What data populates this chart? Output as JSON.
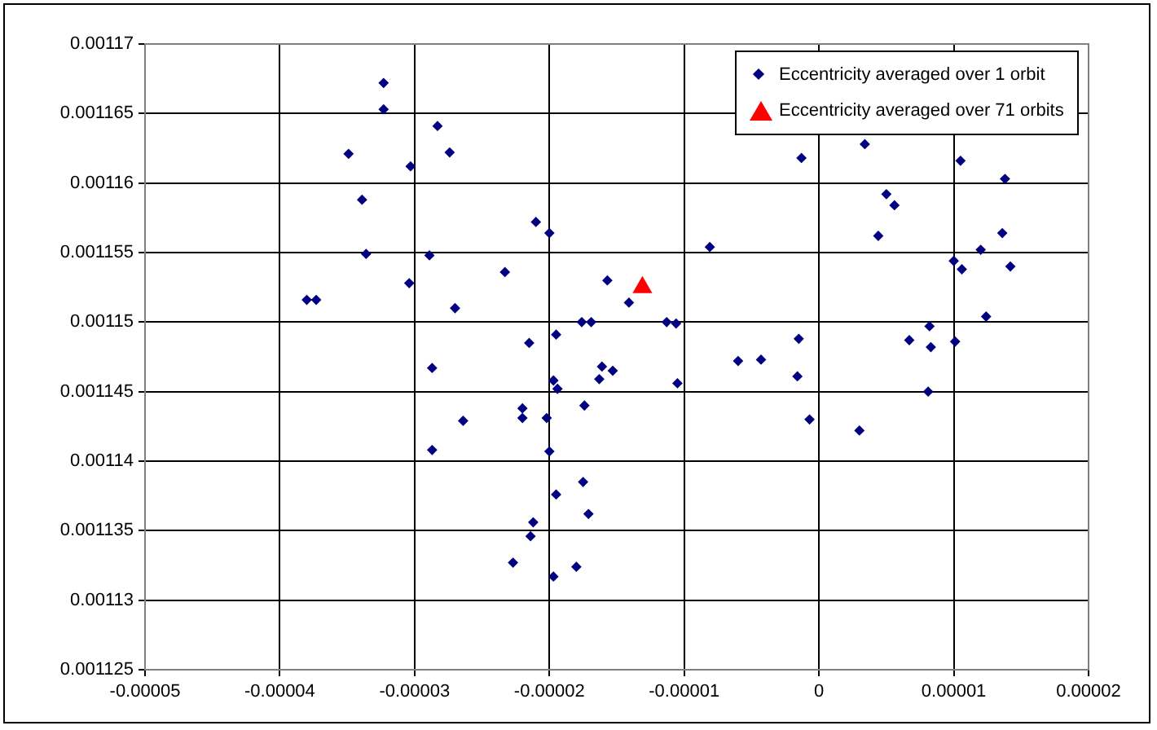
{
  "chart_data": {
    "type": "scatter",
    "xlim": [
      -5e-05,
      2e-05
    ],
    "xticks": [
      {
        "value": -5e-05,
        "label": "-0.00005"
      },
      {
        "value": -4e-05,
        "label": "-0.00004"
      },
      {
        "value": -3e-05,
        "label": "-0.00003"
      },
      {
        "value": -2e-05,
        "label": "-0.00002"
      },
      {
        "value": -1e-05,
        "label": "-0.00001"
      },
      0,
      {
        "value": 1e-05,
        "label": "0.00001"
      },
      {
        "value": 2e-05,
        "label": "0.00002"
      }
    ],
    "ylim": [
      0.001125,
      0.00117
    ],
    "yticks": [
      0.001125,
      0.00113,
      0.001135,
      0.00114,
      0.001145,
      0.00115,
      0.001155,
      0.00116,
      0.001165,
      0.00117
    ],
    "grid": true,
    "legend": "top right",
    "series": [
      {
        "name": "Eccentricity averaged over 1 orbit",
        "color": "#000080",
        "marker": "diamond",
        "x": [
          -3.23e-05,
          -3.23e-05,
          -2.83e-05,
          -2.74e-05,
          -3.49e-05,
          -3.03e-05,
          -3.39e-05,
          -3.36e-05,
          -2.89e-05,
          -3.04e-05,
          -3.8e-05,
          -3.73e-05,
          -2.7e-05,
          -2.33e-05,
          -1.3e-06,
          -2.1e-05,
          -2e-05,
          -8.1e-06,
          -1.57e-05,
          -1.41e-05,
          -1.76e-05,
          -1.69e-05,
          -1.13e-05,
          -1.06e-05,
          -2.15e-05,
          -1.95e-05,
          -1.5e-06,
          3.4e-06,
          1.05e-05,
          1.38e-05,
          5e-06,
          5.6e-06,
          4.4e-06,
          1.36e-05,
          1.2e-05,
          1e-05,
          1.06e-05,
          1.42e-05,
          1.24e-05,
          8.2e-06,
          6.7e-06,
          8.3e-06,
          1.01e-05,
          -2.87e-05,
          -2.64e-05,
          -2.87e-05,
          -1.61e-05,
          -1.53e-05,
          -1.63e-05,
          -1.97e-05,
          -1.94e-05,
          -1.05e-05,
          -6e-06,
          -4.3e-06,
          -1.6e-06,
          -7e-07,
          -2.2e-05,
          -2.2e-05,
          -2.02e-05,
          -1.74e-05,
          -2e-05,
          -1.75e-05,
          -1.95e-05,
          -1.71e-05,
          -2.12e-05,
          -2.14e-05,
          -2.27e-05,
          -1.8e-05,
          -1.97e-05,
          8.1e-06,
          3e-06
        ],
        "values": [
          0.0011672,
          0.0011653,
          0.0011641,
          0.0011622,
          0.0011621,
          0.0011612,
          0.0011588,
          0.0011549,
          0.0011548,
          0.0011528,
          0.0011516,
          0.0011516,
          0.001151,
          0.0011536,
          0.0011618,
          0.0011572,
          0.0011564,
          0.0011554,
          0.001153,
          0.0011514,
          0.00115,
          0.00115,
          0.00115,
          0.0011499,
          0.0011485,
          0.0011491,
          0.0011488,
          0.0011628,
          0.0011616,
          0.0011603,
          0.0011592,
          0.0011584,
          0.0011562,
          0.0011564,
          0.0011552,
          0.0011544,
          0.0011538,
          0.001154,
          0.0011504,
          0.0011497,
          0.0011487,
          0.0011482,
          0.0011486,
          0.0011467,
          0.0011429,
          0.0011408,
          0.0011468,
          0.0011465,
          0.0011459,
          0.0011458,
          0.0011452,
          0.0011456,
          0.0011472,
          0.0011473,
          0.0011461,
          0.001143,
          0.0011438,
          0.0011431,
          0.0011431,
          0.001144,
          0.0011407,
          0.0011385,
          0.0011376,
          0.0011362,
          0.0011356,
          0.0011346,
          0.0011327,
          0.0011324,
          0.0011317,
          0.001145,
          0.0011422
        ]
      },
      {
        "name": "Eccentricity averaged over 71 orbits",
        "color": "#ff0000",
        "marker": "triangle",
        "x": [
          -1.31e-05
        ],
        "values": [
          0.0011525
        ]
      }
    ]
  }
}
